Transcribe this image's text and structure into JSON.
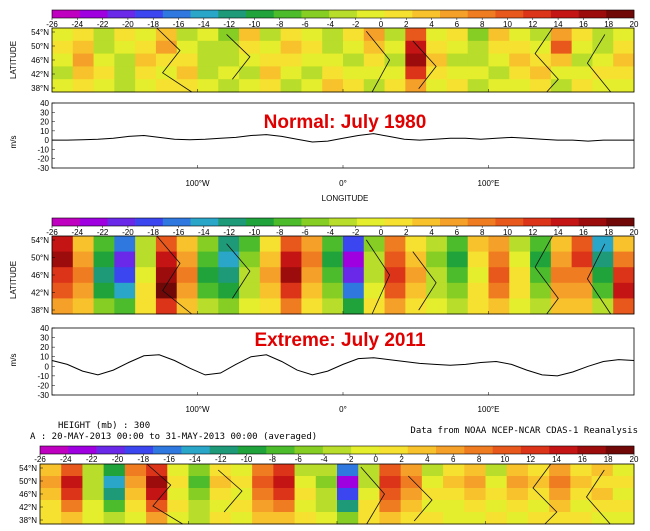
{
  "palette": [
    "#c000c0",
    "#9e00e0",
    "#6a28e8",
    "#3c46f0",
    "#2e78e0",
    "#2aa6c8",
    "#1e9a78",
    "#1fa33a",
    "#4cbb2c",
    "#86cd24",
    "#b8dd2a",
    "#e4ee2c",
    "#f6e030",
    "#f7c22c",
    "#f5a028",
    "#f07c22",
    "#e8581c",
    "#dc3418",
    "#c41414",
    "#9c0c0c",
    "#700808"
  ],
  "colorbar_ticks": [
    "-26",
    "-24",
    "-22",
    "-20",
    "-18",
    "-16",
    "-14",
    "-12",
    "-10",
    "-8",
    "-6",
    "-4",
    "-2",
    "0",
    "2",
    "4",
    "6",
    "8",
    "10",
    "12",
    "14",
    "16",
    "18",
    "20"
  ],
  "lat_ticks": [
    "54°N",
    "50°N",
    "46°N",
    "42°N",
    "38°N"
  ],
  "lon_ticks": [
    "100°W",
    "0°",
    "100°E"
  ],
  "labels": {
    "latitude": "LATITUDE",
    "ms": "m/s",
    "longitude": "LONGITUDE",
    "normal": "Normal: July 1980",
    "extreme": "Extreme: July 2011",
    "height": "HEIGHT (mb) : 300",
    "period": "A : 20-MAY-2013 00:00 to 31-MAY-2013 00:00 (averaged)",
    "source": "Data from NOAA NCEP-NCAR CDAS-1 Reanalysis"
  },
  "chart_data": [
    {
      "type": "heatmap",
      "title": "Normal: July 1980",
      "ylabel": "LATITUDE",
      "y_ticks": [
        "54°N",
        "50°N",
        "46°N",
        "42°N",
        "38°N"
      ],
      "x_ticks": [
        "100°W",
        "0°",
        "100°E"
      ],
      "color_range": [
        -26,
        20
      ],
      "values": [
        [
          0,
          2,
          -4,
          2,
          0,
          4,
          -2,
          0,
          -6,
          4,
          -2,
          2,
          0,
          -4,
          2,
          6,
          -2,
          10,
          0,
          2,
          -6,
          4,
          0,
          -2,
          6,
          2,
          -4,
          0
        ],
        [
          2,
          4,
          -2,
          0,
          2,
          6,
          0,
          -2,
          -4,
          2,
          0,
          4,
          2,
          -2,
          0,
          4,
          0,
          14,
          2,
          0,
          -4,
          2,
          2,
          0,
          10,
          0,
          -2,
          2
        ],
        [
          0,
          6,
          0,
          -2,
          4,
          2,
          2,
          -4,
          -2,
          0,
          2,
          2,
          0,
          0,
          -2,
          2,
          -2,
          16,
          4,
          -2,
          -2,
          0,
          4,
          2,
          4,
          -2,
          0,
          4
        ],
        [
          -2,
          4,
          2,
          -4,
          2,
          0,
          4,
          -2,
          0,
          -2,
          4,
          0,
          -2,
          2,
          0,
          0,
          0,
          12,
          2,
          0,
          0,
          -2,
          2,
          4,
          0,
          0,
          2,
          2
        ],
        [
          0,
          2,
          0,
          -2,
          0,
          2,
          2,
          0,
          -2,
          0,
          2,
          -2,
          0,
          4,
          2,
          -2,
          2,
          6,
          0,
          2,
          -2,
          0,
          0,
          2,
          -2,
          2,
          0,
          0
        ]
      ]
    },
    {
      "type": "line",
      "xlabel": "LONGITUDE",
      "ylabel": "m/s",
      "x_ticks": [
        "100°W",
        "0°",
        "100°E"
      ],
      "y_ticks": [
        "40",
        "30",
        "20",
        "10",
        "0",
        "-10",
        "-20",
        "-30"
      ],
      "ylim": [
        -30,
        40
      ],
      "values": [
        0,
        0,
        0.5,
        1,
        2,
        4,
        5,
        3,
        1,
        0.5,
        1,
        2,
        3,
        5,
        6,
        4,
        1,
        -2,
        -1,
        2,
        5,
        7,
        4,
        1,
        0,
        1,
        2,
        2,
        1,
        2,
        3,
        2,
        1,
        0,
        0,
        -1,
        0,
        0,
        0
      ]
    },
    {
      "type": "heatmap",
      "title": "Extreme: July 2011",
      "ylabel": "LATITUDE",
      "y_ticks": [
        "54°N",
        "50°N",
        "46°N",
        "42°N",
        "38°N"
      ],
      "x_ticks": [
        "100°W",
        "0°",
        "100°E"
      ],
      "color_range": [
        -26,
        20
      ],
      "values": [
        [
          14,
          4,
          -8,
          -16,
          -4,
          10,
          4,
          -6,
          -12,
          -8,
          2,
          10,
          6,
          -8,
          -18,
          -6,
          8,
          2,
          -4,
          -8,
          4,
          6,
          -2,
          -8,
          4,
          10,
          -14,
          4
        ],
        [
          16,
          6,
          -10,
          -20,
          -2,
          14,
          6,
          -8,
          -14,
          -6,
          4,
          14,
          8,
          -10,
          -22,
          -4,
          10,
          4,
          -6,
          -10,
          2,
          8,
          0,
          -10,
          6,
          12,
          -12,
          8
        ],
        [
          12,
          8,
          -12,
          -18,
          0,
          16,
          8,
          -10,
          -12,
          -4,
          6,
          16,
          6,
          -8,
          -20,
          -2,
          12,
          6,
          -4,
          -8,
          0,
          10,
          2,
          -8,
          8,
          8,
          -10,
          12
        ],
        [
          10,
          6,
          -10,
          -14,
          2,
          18,
          6,
          -8,
          -10,
          -2,
          4,
          12,
          4,
          -6,
          -16,
          0,
          10,
          4,
          -2,
          -6,
          2,
          8,
          2,
          -6,
          6,
          6,
          -8,
          14
        ],
        [
          6,
          4,
          -6,
          -8,
          2,
          12,
          4,
          -4,
          -6,
          0,
          2,
          8,
          2,
          -4,
          -10,
          2,
          6,
          2,
          0,
          -4,
          2,
          4,
          0,
          -2,
          4,
          4,
          -4,
          10
        ]
      ]
    },
    {
      "type": "line",
      "ylabel": "m/s",
      "x_ticks": [
        "100°W",
        "0°",
        "100°E"
      ],
      "y_ticks": [
        "40",
        "30",
        "20",
        "10",
        "0",
        "-10",
        "-20",
        "-30"
      ],
      "ylim": [
        -30,
        40
      ],
      "values": [
        6,
        2,
        -5,
        -9,
        -4,
        4,
        11,
        12,
        6,
        -2,
        -9,
        -7,
        2,
        10,
        12,
        5,
        -4,
        -9,
        -5,
        2,
        8,
        9,
        7,
        5,
        3,
        2,
        1,
        2,
        4,
        5,
        2,
        -4,
        -9,
        -10,
        -6,
        0,
        5,
        7,
        6
      ]
    },
    {
      "type": "heatmap",
      "y_ticks": [
        "54°N",
        "50°N",
        "46°N",
        "42°N",
        "38°N"
      ],
      "color_range": [
        -26,
        20
      ],
      "values": [
        [
          4,
          10,
          -2,
          -10,
          8,
          12,
          0,
          -6,
          2,
          0,
          8,
          12,
          -2,
          -4,
          -16,
          -4,
          10,
          6,
          -2,
          2,
          4,
          -2,
          4,
          2,
          6,
          2,
          4,
          0
        ],
        [
          6,
          14,
          -4,
          -14,
          6,
          16,
          2,
          -8,
          4,
          2,
          10,
          14,
          0,
          -6,
          -22,
          -2,
          12,
          8,
          0,
          4,
          6,
          0,
          6,
          4,
          8,
          4,
          2,
          2
        ],
        [
          4,
          12,
          -2,
          -12,
          4,
          14,
          0,
          -6,
          2,
          0,
          8,
          12,
          2,
          -4,
          -18,
          0,
          10,
          6,
          2,
          2,
          4,
          2,
          4,
          2,
          6,
          2,
          4,
          0
        ],
        [
          2,
          8,
          0,
          -8,
          2,
          10,
          2,
          -4,
          0,
          2,
          6,
          8,
          0,
          -2,
          -12,
          2,
          8,
          4,
          0,
          0,
          2,
          0,
          2,
          0,
          4,
          0,
          2,
          2
        ],
        [
          2,
          4,
          0,
          -4,
          0,
          6,
          0,
          -2,
          2,
          0,
          4,
          4,
          2,
          0,
          -6,
          2,
          4,
          2,
          2,
          0,
          0,
          2,
          0,
          2,
          2,
          2,
          0,
          0
        ]
      ]
    }
  ]
}
